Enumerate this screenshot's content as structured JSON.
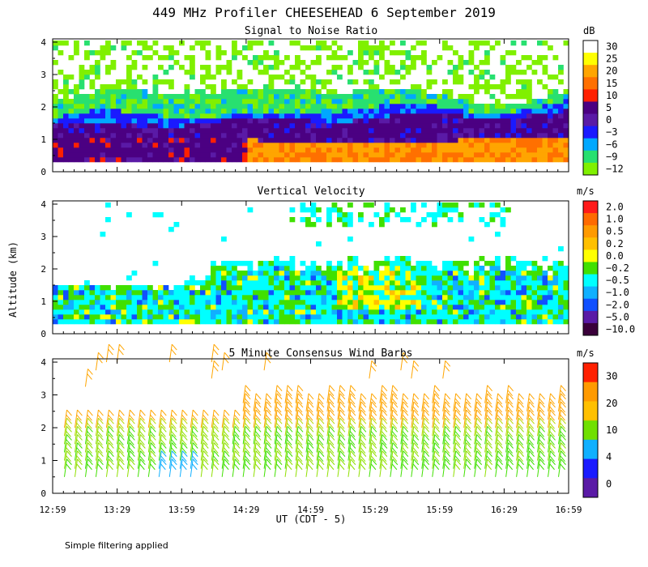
{
  "title": "449 MHz Profiler CHEESEHEAD  6 September 2019",
  "footer_note": "Simple filtering applied",
  "x_axis": {
    "label": "UT  (CDT - 5)",
    "ticks": [
      "12:59",
      "13:29",
      "13:59",
      "14:29",
      "14:59",
      "15:29",
      "15:59",
      "16:29",
      "16:59"
    ],
    "range_hours_ut": [
      12.983,
      16.983
    ]
  },
  "y_axis": {
    "label": "Altitude (km)",
    "ticks": [
      "0",
      "1",
      "2",
      "3",
      "4"
    ],
    "range_km": [
      0,
      4.1
    ]
  },
  "chart_data": [
    {
      "type": "heatmap",
      "title": "Signal to Noise Ratio",
      "unit": "dB",
      "colorbar": {
        "labels": [
          "30",
          "25",
          "20",
          "15",
          "10",
          "5",
          "0",
          "−3",
          "−6",
          "−9",
          "−12"
        ],
        "colors": [
          "#ffffff",
          "#ffff00",
          "#ffa500",
          "#ff7000",
          "#ff2000",
          "#4b0082",
          "#5a1aa6",
          "#1a1aff",
          "#00a8ff",
          "#28e070",
          "#80f000"
        ]
      },
      "description_bands_km": [
        {
          "from": 0.3,
          "to": 0.9,
          "value_db": "10 to 20"
        },
        {
          "from": 0.9,
          "to": 1.6,
          "value_db": "0 to 5"
        },
        {
          "from": 1.6,
          "to": 2.2,
          "value_db": "-9 to -3"
        },
        {
          "from": 2.2,
          "to": 4.0,
          "value_db": "-12 to -9"
        }
      ]
    },
    {
      "type": "heatmap",
      "title": "Vertical Velocity",
      "unit": "m/s",
      "colorbar": {
        "labels": [
          "2.0",
          "1.0",
          "0.5",
          "0.2",
          "0.0",
          "−0.2",
          "−0.5",
          "−1.0",
          "−2.0",
          "−5.0",
          "−10.0"
        ],
        "colors": [
          "#ff1a1a",
          "#ff6a00",
          "#ff9a00",
          "#ffc000",
          "#ffff00",
          "#40e000",
          "#00ffff",
          "#10b0ff",
          "#1050ff",
          "#5a1aa6",
          "#3a003a"
        ]
      }
    },
    {
      "type": "scatter",
      "title": "5 Minute Consensus Wind Barbs",
      "unit": "m/s",
      "colorbar": {
        "labels": [
          "30",
          "20",
          "10",
          "4",
          "0"
        ],
        "colors": [
          "#ff2000",
          "#ff9a00",
          "#ffc000",
          "#70e000",
          "#10b0ff",
          "#1a1aff",
          "#5a1aa6"
        ]
      },
      "barb_times_count": 48,
      "barb_levels_km": [
        0.5,
        0.75,
        1.0,
        1.25,
        1.5,
        1.75,
        2.0,
        2.25,
        2.5,
        2.75,
        3.0,
        3.25,
        3.5,
        3.75,
        4.0
      ]
    }
  ]
}
